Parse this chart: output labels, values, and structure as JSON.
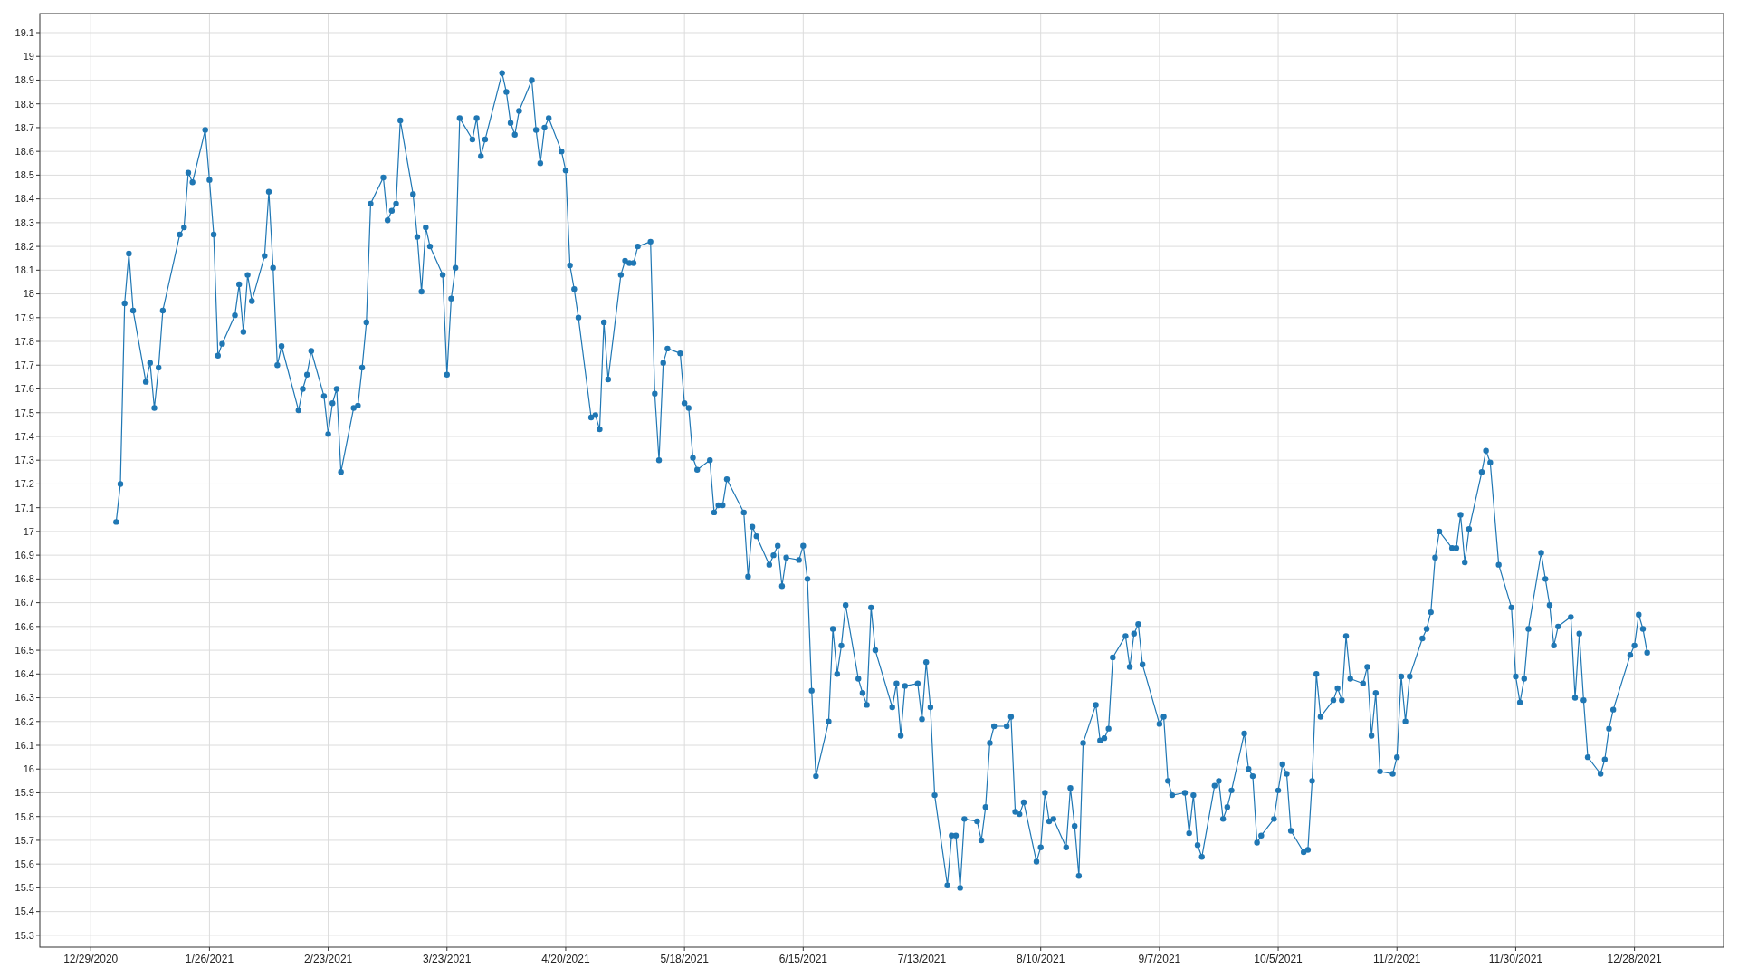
{
  "chart_data": {
    "type": "line",
    "x": [
      "2021-01-04",
      "2021-01-05",
      "2021-01-06",
      "2021-01-07",
      "2021-01-08",
      "2021-01-11",
      "2021-01-12",
      "2021-01-13",
      "2021-01-14",
      "2021-01-15",
      "2021-01-19",
      "2021-01-20",
      "2021-01-21",
      "2021-01-22",
      "2021-01-25",
      "2021-01-26",
      "2021-01-27",
      "2021-01-28",
      "2021-01-29",
      "2021-02-01",
      "2021-02-02",
      "2021-02-03",
      "2021-02-04",
      "2021-02-05",
      "2021-02-08",
      "2021-02-09",
      "2021-02-10",
      "2021-02-11",
      "2021-02-12",
      "2021-02-16",
      "2021-02-17",
      "2021-02-18",
      "2021-02-19",
      "2021-02-22",
      "2021-02-23",
      "2021-02-24",
      "2021-02-25",
      "2021-02-26",
      "2021-03-01",
      "2021-03-02",
      "2021-03-03",
      "2021-03-04",
      "2021-03-05",
      "2021-03-08",
      "2021-03-09",
      "2021-03-10",
      "2021-03-11",
      "2021-03-12",
      "2021-03-15",
      "2021-03-16",
      "2021-03-17",
      "2021-03-18",
      "2021-03-19",
      "2021-03-22",
      "2021-03-23",
      "2021-03-24",
      "2021-03-25",
      "2021-03-26",
      "2021-03-29",
      "2021-03-30",
      "2021-03-31",
      "2021-04-01",
      "2021-04-05",
      "2021-04-06",
      "2021-04-07",
      "2021-04-08",
      "2021-04-09",
      "2021-04-12",
      "2021-04-13",
      "2021-04-14",
      "2021-04-15",
      "2021-04-16",
      "2021-04-19",
      "2021-04-20",
      "2021-04-21",
      "2021-04-22",
      "2021-04-23",
      "2021-04-26",
      "2021-04-27",
      "2021-04-28",
      "2021-04-29",
      "2021-04-30",
      "2021-05-03",
      "2021-05-04",
      "2021-05-05",
      "2021-05-06",
      "2021-05-07",
      "2021-05-10",
      "2021-05-11",
      "2021-05-12",
      "2021-05-13",
      "2021-05-14",
      "2021-05-17",
      "2021-05-18",
      "2021-05-19",
      "2021-05-20",
      "2021-05-21",
      "2021-05-24",
      "2021-05-25",
      "2021-05-26",
      "2021-05-27",
      "2021-05-28",
      "2021-06-01",
      "2021-06-02",
      "2021-06-03",
      "2021-06-04",
      "2021-06-07",
      "2021-06-08",
      "2021-06-09",
      "2021-06-10",
      "2021-06-11",
      "2021-06-14",
      "2021-06-15",
      "2021-06-16",
      "2021-06-17",
      "2021-06-18",
      "2021-06-21",
      "2021-06-22",
      "2021-06-23",
      "2021-06-24",
      "2021-06-25",
      "2021-06-28",
      "2021-06-29",
      "2021-06-30",
      "2021-07-01",
      "2021-07-02",
      "2021-07-06",
      "2021-07-07",
      "2021-07-08",
      "2021-07-09",
      "2021-07-12",
      "2021-07-13",
      "2021-07-14",
      "2021-07-15",
      "2021-07-16",
      "2021-07-19",
      "2021-07-20",
      "2021-07-21",
      "2021-07-22",
      "2021-07-23",
      "2021-07-26",
      "2021-07-27",
      "2021-07-28",
      "2021-07-29",
      "2021-07-30",
      "2021-08-02",
      "2021-08-03",
      "2021-08-04",
      "2021-08-05",
      "2021-08-06",
      "2021-08-09",
      "2021-08-10",
      "2021-08-11",
      "2021-08-12",
      "2021-08-13",
      "2021-08-16",
      "2021-08-17",
      "2021-08-18",
      "2021-08-19",
      "2021-08-20",
      "2021-08-23",
      "2021-08-24",
      "2021-08-25",
      "2021-08-26",
      "2021-08-27",
      "2021-08-30",
      "2021-08-31",
      "2021-09-01",
      "2021-09-02",
      "2021-09-03",
      "2021-09-07",
      "2021-09-08",
      "2021-09-09",
      "2021-09-10",
      "2021-09-13",
      "2021-09-14",
      "2021-09-15",
      "2021-09-16",
      "2021-09-17",
      "2021-09-20",
      "2021-09-21",
      "2021-09-22",
      "2021-09-23",
      "2021-09-24",
      "2021-09-27",
      "2021-09-28",
      "2021-09-29",
      "2021-09-30",
      "2021-10-01",
      "2021-10-04",
      "2021-10-05",
      "2021-10-06",
      "2021-10-07",
      "2021-10-08",
      "2021-10-11",
      "2021-10-12",
      "2021-10-13",
      "2021-10-14",
      "2021-10-15",
      "2021-10-18",
      "2021-10-19",
      "2021-10-20",
      "2021-10-21",
      "2021-10-22",
      "2021-10-25",
      "2021-10-26",
      "2021-10-27",
      "2021-10-28",
      "2021-10-29",
      "2021-11-01",
      "2021-11-02",
      "2021-11-03",
      "2021-11-04",
      "2021-11-05",
      "2021-11-08",
      "2021-11-09",
      "2021-11-10",
      "2021-11-11",
      "2021-11-12",
      "2021-11-15",
      "2021-11-16",
      "2021-11-17",
      "2021-11-18",
      "2021-11-19",
      "2021-11-22",
      "2021-11-23",
      "2021-11-24",
      "2021-11-26",
      "2021-11-29",
      "2021-11-30",
      "2021-12-01",
      "2021-12-02",
      "2021-12-03",
      "2021-12-06",
      "2021-12-07",
      "2021-12-08",
      "2021-12-09",
      "2021-12-10",
      "2021-12-13",
      "2021-12-14",
      "2021-12-15",
      "2021-12-16",
      "2021-12-17",
      "2021-12-20",
      "2021-12-21",
      "2021-12-22",
      "2021-12-23",
      "2021-12-27",
      "2021-12-28",
      "2021-12-29",
      "2021-12-30",
      "2021-12-31"
    ],
    "series": [
      {
        "color": "#1f77b4",
        "values": [
          17.04,
          17.2,
          17.96,
          18.17,
          17.93,
          17.63,
          17.71,
          17.52,
          17.69,
          17.93,
          18.25,
          18.28,
          18.51,
          18.47,
          18.69,
          18.48,
          18.25,
          17.74,
          17.79,
          17.91,
          18.04,
          17.84,
          18.08,
          17.97,
          18.16,
          18.43,
          18.11,
          17.7,
          17.78,
          17.51,
          17.6,
          17.66,
          17.76,
          17.57,
          17.41,
          17.54,
          17.6,
          17.25,
          17.52,
          17.53,
          17.69,
          17.88,
          18.38,
          18.49,
          18.31,
          18.35,
          18.38,
          18.73,
          18.42,
          18.24,
          18.01,
          18.28,
          18.2,
          18.08,
          17.66,
          17.98,
          18.11,
          18.74,
          18.65,
          18.74,
          18.58,
          18.65,
          18.93,
          18.85,
          18.72,
          18.67,
          18.77,
          18.9,
          18.69,
          18.55,
          18.7,
          18.74,
          18.6,
          18.52,
          18.12,
          18.02,
          17.9,
          17.48,
          17.49,
          17.43,
          17.88,
          17.64,
          18.08,
          18.14,
          18.13,
          18.13,
          18.2,
          18.22,
          17.58,
          17.3,
          17.71,
          17.77,
          17.75,
          17.54,
          17.52,
          17.31,
          17.26,
          17.3,
          17.08,
          17.11,
          17.11,
          17.22,
          17.08,
          16.81,
          17.02,
          16.98,
          16.86,
          16.9,
          16.94,
          16.77,
          16.89,
          16.88,
          16.94,
          16.8,
          16.33,
          15.97,
          16.2,
          16.59,
          16.4,
          16.52,
          16.69,
          16.38,
          16.32,
          16.27,
          16.68,
          16.5,
          16.26,
          16.36,
          16.14,
          16.35,
          16.36,
          16.21,
          16.45,
          16.26,
          15.89,
          15.51,
          15.72,
          15.72,
          15.5,
          15.79,
          15.78,
          15.7,
          15.84,
          16.11,
          16.18,
          16.18,
          16.22,
          15.82,
          15.81,
          15.86,
          15.61,
          15.67,
          15.9,
          15.78,
          15.79,
          15.67,
          15.92,
          15.76,
          15.55,
          16.11,
          16.27,
          16.12,
          16.13,
          16.17,
          16.47,
          16.56,
          16.43,
          16.57,
          16.61,
          16.44,
          16.19,
          16.22,
          15.95,
          15.89,
          15.9,
          15.73,
          15.89,
          15.68,
          15.63,
          15.93,
          15.95,
          15.79,
          15.84,
          15.91,
          16.15,
          16.0,
          15.97,
          15.69,
          15.72,
          15.79,
          15.91,
          16.02,
          15.98,
          15.74,
          15.65,
          15.66,
          15.95,
          16.4,
          16.22,
          16.29,
          16.34,
          16.29,
          16.56,
          16.38,
          16.36,
          16.43,
          16.14,
          16.32,
          15.99,
          15.98,
          16.05,
          16.39,
          16.2,
          16.39,
          16.55,
          16.59,
          16.66,
          16.89,
          17.0,
          16.93,
          16.93,
          17.07,
          16.87,
          17.01,
          17.25,
          17.34,
          17.29,
          16.86,
          16.68,
          16.39,
          16.28,
          16.38,
          16.59,
          16.91,
          16.8,
          16.69,
          16.52,
          16.6,
          16.64,
          16.3,
          16.57,
          16.29,
          16.05,
          15.98,
          16.04,
          16.17,
          16.25,
          16.48,
          16.52,
          16.65,
          16.59,
          16.49
        ]
      }
    ],
    "xlim": [
      "2020-12-17",
      "2022-01-18"
    ],
    "xticks": [
      {
        "value": "2020-12-29",
        "label": "12/29/2020"
      },
      {
        "value": "2021-01-26",
        "label": "1/26/2021"
      },
      {
        "value": "2021-02-23",
        "label": "2/23/2021"
      },
      {
        "value": "2021-03-23",
        "label": "3/23/2021"
      },
      {
        "value": "2021-04-20",
        "label": "4/20/2021"
      },
      {
        "value": "2021-05-18",
        "label": "5/18/2021"
      },
      {
        "value": "2021-06-15",
        "label": "6/15/2021"
      },
      {
        "value": "2021-07-13",
        "label": "7/13/2021"
      },
      {
        "value": "2021-08-10",
        "label": "8/10/2021"
      },
      {
        "value": "2021-09-07",
        "label": "9/7/2021"
      },
      {
        "value": "2021-10-05",
        "label": "10/5/2021"
      },
      {
        "value": "2021-11-02",
        "label": "11/2/2021"
      },
      {
        "value": "2021-11-30",
        "label": "11/30/2021"
      },
      {
        "value": "2021-12-28",
        "label": "12/28/2021"
      }
    ],
    "ylim": [
      15.25,
      19.18
    ],
    "yticks": [
      15.3,
      15.4,
      15.5,
      15.6,
      15.7,
      15.8,
      15.9,
      16,
      16.1,
      16.2,
      16.3,
      16.4,
      16.5,
      16.6,
      16.7,
      16.8,
      16.9,
      17,
      17.1,
      17.2,
      17.3,
      17.4,
      17.5,
      17.6,
      17.7,
      17.8,
      17.9,
      18,
      18.1,
      18.2,
      18.3,
      18.4,
      18.5,
      18.6,
      18.7,
      18.8,
      18.9,
      19,
      19.1
    ],
    "grid": true,
    "marker": "circle",
    "line_style": "solid"
  }
}
